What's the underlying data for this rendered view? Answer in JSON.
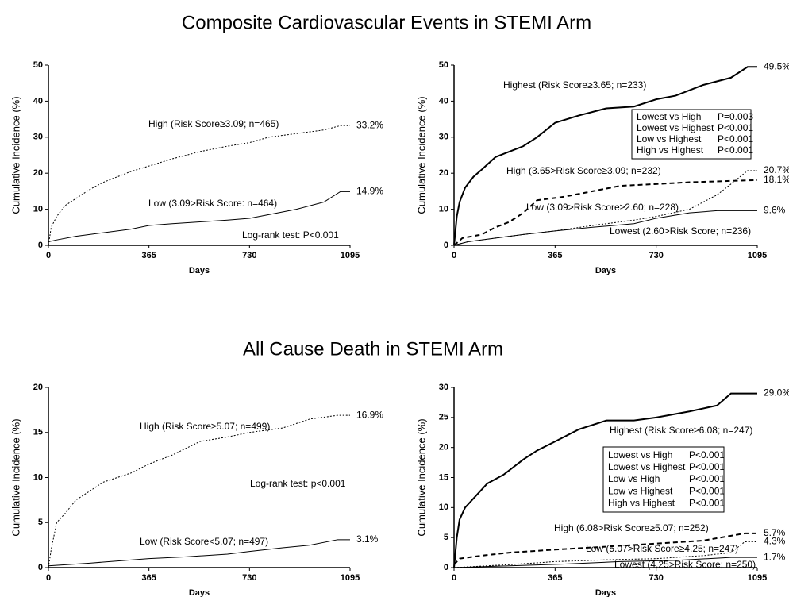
{
  "headings": [
    "Composite Cardiovascular Events in STEMI Arm",
    "All Cause Death in STEMI Arm"
  ],
  "chart_data": [
    {
      "type": "line",
      "x_label": "Days",
      "y_label": "Cumulative Incidence (%)",
      "xlim": [
        0,
        1095
      ],
      "xticks": [
        0,
        365,
        730,
        1095
      ],
      "ylim": [
        0,
        50
      ],
      "yticks": [
        0,
        10,
        20,
        30,
        40,
        50
      ],
      "annotation": "Log-rank test:  P<0.001",
      "series": [
        {
          "name": "High (Risk Score≥3.09; n=465)",
          "color": "#000000",
          "line_style": "dotted",
          "x": [
            0,
            10,
            30,
            60,
            100,
            150,
            200,
            250,
            300,
            365,
            450,
            550,
            650,
            730,
            800,
            900,
            1000,
            1060,
            1095
          ],
          "values": [
            0,
            5,
            8,
            11,
            13,
            15.5,
            17.5,
            19,
            20.5,
            22,
            24,
            26,
            27.5,
            28.5,
            30,
            31,
            32,
            33.2,
            33.2
          ],
          "value_labels": [
            null,
            null,
            null,
            null,
            null,
            null,
            null,
            null,
            null,
            null,
            null,
            null,
            null,
            null,
            null,
            null,
            null,
            null,
            "33.2%"
          ]
        },
        {
          "name": "Low (3.09>Risk Score: n=464)",
          "color": "#000000",
          "line_style": "solid",
          "x": [
            0,
            30,
            100,
            200,
            300,
            365,
            450,
            550,
            650,
            730,
            800,
            900,
            1000,
            1060,
            1095
          ],
          "values": [
            1,
            1.5,
            2.5,
            3.5,
            4.5,
            5.5,
            6,
            6.5,
            7,
            7.5,
            8.5,
            10,
            12,
            14.9,
            14.9
          ],
          "value_labels": [
            null,
            null,
            null,
            null,
            null,
            null,
            null,
            null,
            null,
            null,
            null,
            null,
            null,
            null,
            "14.9%"
          ]
        }
      ]
    },
    {
      "type": "line",
      "x_label": "Days",
      "y_label": "Cumulative Incidence (%)",
      "xlim": [
        0,
        1095
      ],
      "xticks": [
        0,
        365,
        730,
        1095
      ],
      "ylim": [
        0,
        50
      ],
      "yticks": [
        0,
        10,
        20,
        30,
        40,
        50
      ],
      "comparisons": [
        [
          "Lowest vs High",
          "P=0.003"
        ],
        [
          "Lowest vs Highest",
          "P<0.001"
        ],
        [
          "Low vs Highest",
          "P<0.001"
        ],
        [
          "High vs Highest",
          "P<0.001"
        ]
      ],
      "series": [
        {
          "name": "Highest (Risk Score≥3.65; n=233)",
          "color": "#000000",
          "line_style": "thick",
          "x": [
            0,
            10,
            20,
            40,
            70,
            100,
            150,
            200,
            250,
            300,
            365,
            450,
            550,
            650,
            730,
            800,
            900,
            1000,
            1060,
            1095
          ],
          "values": [
            0,
            8,
            12,
            16,
            19,
            21,
            24.5,
            26,
            27.5,
            30,
            34,
            36,
            38,
            38.5,
            40.5,
            41.5,
            44.5,
            46.5,
            49.5,
            49.5
          ],
          "value_labels": [
            null,
            null,
            null,
            null,
            null,
            null,
            null,
            null,
            null,
            null,
            null,
            null,
            null,
            null,
            null,
            null,
            null,
            null,
            null,
            "49.5%"
          ]
        },
        {
          "name": "High (3.65>Risk Score≥3.09; n=232)",
          "color": "#000000",
          "line_style": "dashed",
          "x": [
            0,
            30,
            100,
            150,
            200,
            250,
            300,
            400,
            500,
            600,
            730,
            850,
            1095
          ],
          "values": [
            0,
            2,
            3,
            5,
            6.5,
            9,
            12.5,
            13.5,
            15,
            16.5,
            17,
            17.5,
            18.1
          ],
          "value_labels": [
            null,
            null,
            null,
            null,
            null,
            null,
            null,
            null,
            null,
            null,
            null,
            null,
            "18.1%"
          ]
        },
        {
          "name": "Low (3.09>Risk Score≥2.60; n=228)",
          "color": "#000000",
          "line_style": "dotted",
          "x": [
            0,
            50,
            150,
            250,
            365,
            500,
            650,
            730,
            850,
            950,
            1000,
            1060,
            1095
          ],
          "values": [
            0,
            1,
            2,
            3,
            4,
            5.5,
            7,
            8,
            10,
            14,
            17,
            20.7,
            20.7
          ],
          "value_labels": [
            null,
            null,
            null,
            null,
            null,
            null,
            null,
            null,
            null,
            null,
            null,
            null,
            "20.7%"
          ]
        },
        {
          "name": "Lowest (2.60>Risk Score; n=236)",
          "color": "#000000",
          "line_style": "solid",
          "x": [
            0,
            50,
            150,
            250,
            365,
            500,
            650,
            730,
            850,
            950,
            1095
          ],
          "values": [
            0,
            1,
            2,
            3,
            4,
            5,
            6,
            7.5,
            9,
            9.6,
            9.6
          ],
          "value_labels": [
            null,
            null,
            null,
            null,
            null,
            null,
            null,
            null,
            null,
            null,
            "9.6%"
          ]
        }
      ]
    },
    {
      "type": "line",
      "x_label": "Days",
      "y_label": "Cumulative Incidence (%)",
      "xlim": [
        0,
        1095
      ],
      "xticks": [
        0,
        365,
        730,
        1095
      ],
      "ylim": [
        0,
        20
      ],
      "yticks": [
        0,
        5,
        10,
        15,
        20
      ],
      "annotation": "Log-rank test:  p<0.001",
      "series": [
        {
          "name": "High (Risk Score≥5.07; n=499)",
          "color": "#000000",
          "line_style": "dotted",
          "x": [
            0,
            10,
            30,
            60,
            100,
            150,
            200,
            250,
            300,
            365,
            450,
            550,
            650,
            730,
            850,
            950,
            1050,
            1095
          ],
          "values": [
            0,
            2,
            5,
            6,
            7.5,
            8.5,
            9.5,
            10,
            10.5,
            11.5,
            12.5,
            14,
            14.5,
            15,
            15.5,
            16.5,
            16.9,
            16.9
          ],
          "value_labels": [
            null,
            null,
            null,
            null,
            null,
            null,
            null,
            null,
            null,
            null,
            null,
            null,
            null,
            null,
            null,
            null,
            null,
            "16.9%"
          ]
        },
        {
          "name": "Low (Risk Score<5.07; n=497)",
          "color": "#000000",
          "line_style": "solid",
          "x": [
            0,
            150,
            365,
            500,
            650,
            730,
            850,
            950,
            1050,
            1095
          ],
          "values": [
            0.2,
            0.5,
            1,
            1.2,
            1.5,
            1.8,
            2.2,
            2.5,
            3.1,
            3.1
          ],
          "value_labels": [
            null,
            null,
            null,
            null,
            null,
            null,
            null,
            null,
            null,
            "3.1%"
          ]
        }
      ]
    },
    {
      "type": "line",
      "x_label": "Days",
      "y_label": "Cumulative Incidence (%)",
      "xlim": [
        0,
        1095
      ],
      "xticks": [
        0,
        365,
        730,
        1095
      ],
      "ylim": [
        0,
        30
      ],
      "yticks": [
        0,
        5,
        10,
        15,
        20,
        25,
        30
      ],
      "comparisons": [
        [
          "Lowest vs High",
          "P<0.001"
        ],
        [
          "Lowest vs Highest",
          "P<0.001"
        ],
        [
          "Low vs High",
          "P<0.001"
        ],
        [
          "Low vs Highest",
          "P<0.001"
        ],
        [
          "High vs Highest",
          "P<0.001"
        ]
      ],
      "series": [
        {
          "name": "Highest (Risk Score≥6.08; n=247)",
          "color": "#000000",
          "line_style": "thick",
          "x": [
            0,
            10,
            20,
            40,
            80,
            120,
            180,
            250,
            300,
            365,
            450,
            550,
            650,
            730,
            850,
            950,
            1000,
            1095
          ],
          "values": [
            0,
            5,
            8,
            10,
            12,
            14,
            15.5,
            18,
            19.5,
            21,
            23,
            24.5,
            24.5,
            25,
            26,
            27,
            29,
            29
          ],
          "value_labels": [
            null,
            null,
            null,
            null,
            null,
            null,
            null,
            null,
            null,
            null,
            null,
            null,
            null,
            null,
            null,
            null,
            null,
            "29.0%"
          ]
        },
        {
          "name": "High (6.08>Risk Score≥5.07; n=252)",
          "color": "#000000",
          "line_style": "dashed",
          "x": [
            0,
            20,
            100,
            200,
            365,
            550,
            730,
            900,
            1050,
            1095
          ],
          "values": [
            0.5,
            1.5,
            2,
            2.5,
            3,
            3.5,
            4,
            4.5,
            5.7,
            5.7
          ],
          "value_labels": [
            null,
            null,
            null,
            null,
            null,
            null,
            null,
            null,
            null,
            "5.7%"
          ]
        },
        {
          "name": "Low (5.07>Risk Score≥4.25; n=247)",
          "color": "#000000",
          "line_style": "dotted",
          "x": [
            0,
            200,
            365,
            550,
            730,
            900,
            1000,
            1050,
            1095
          ],
          "values": [
            0,
            0.5,
            1,
            1.3,
            1.5,
            2,
            2.5,
            4.3,
            4.3
          ],
          "value_labels": [
            null,
            null,
            null,
            null,
            null,
            null,
            null,
            null,
            "4.3%"
          ]
        },
        {
          "name": "Lowest (4.25>Risk Score; n=250)",
          "color": "#000000",
          "line_style": "solid",
          "x": [
            0,
            200,
            400,
            600,
            800,
            1000,
            1095
          ],
          "values": [
            0,
            0.3,
            0.6,
            1,
            1.2,
            1.7,
            1.7
          ],
          "value_labels": [
            null,
            null,
            null,
            null,
            null,
            null,
            "1.7%"
          ]
        }
      ]
    }
  ]
}
